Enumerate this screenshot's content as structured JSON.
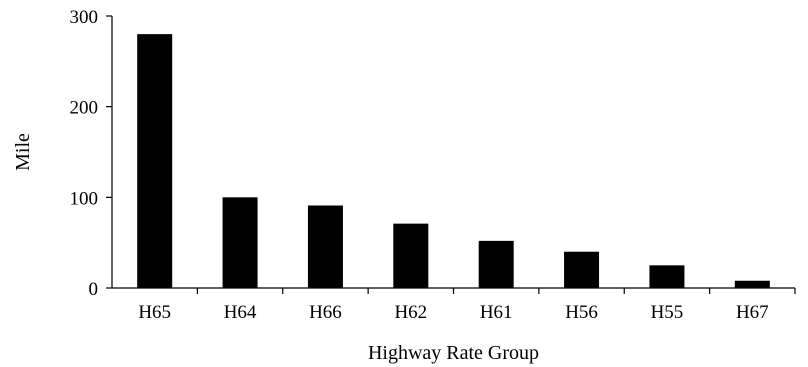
{
  "chart_data": {
    "type": "bar",
    "title": "",
    "xlabel": "Highway Rate Group",
    "ylabel": "Mile",
    "categories": [
      "H65",
      "H64",
      "H66",
      "H62",
      "H61",
      "H56",
      "H55",
      "H67"
    ],
    "values": [
      280,
      100,
      91,
      71,
      52,
      40,
      25,
      8
    ],
    "ylim": [
      0,
      300
    ],
    "yticks": [
      0,
      100,
      200,
      300
    ],
    "grid": false,
    "legend": "none",
    "bar_color": "#000000",
    "axis_color": "#000000"
  }
}
